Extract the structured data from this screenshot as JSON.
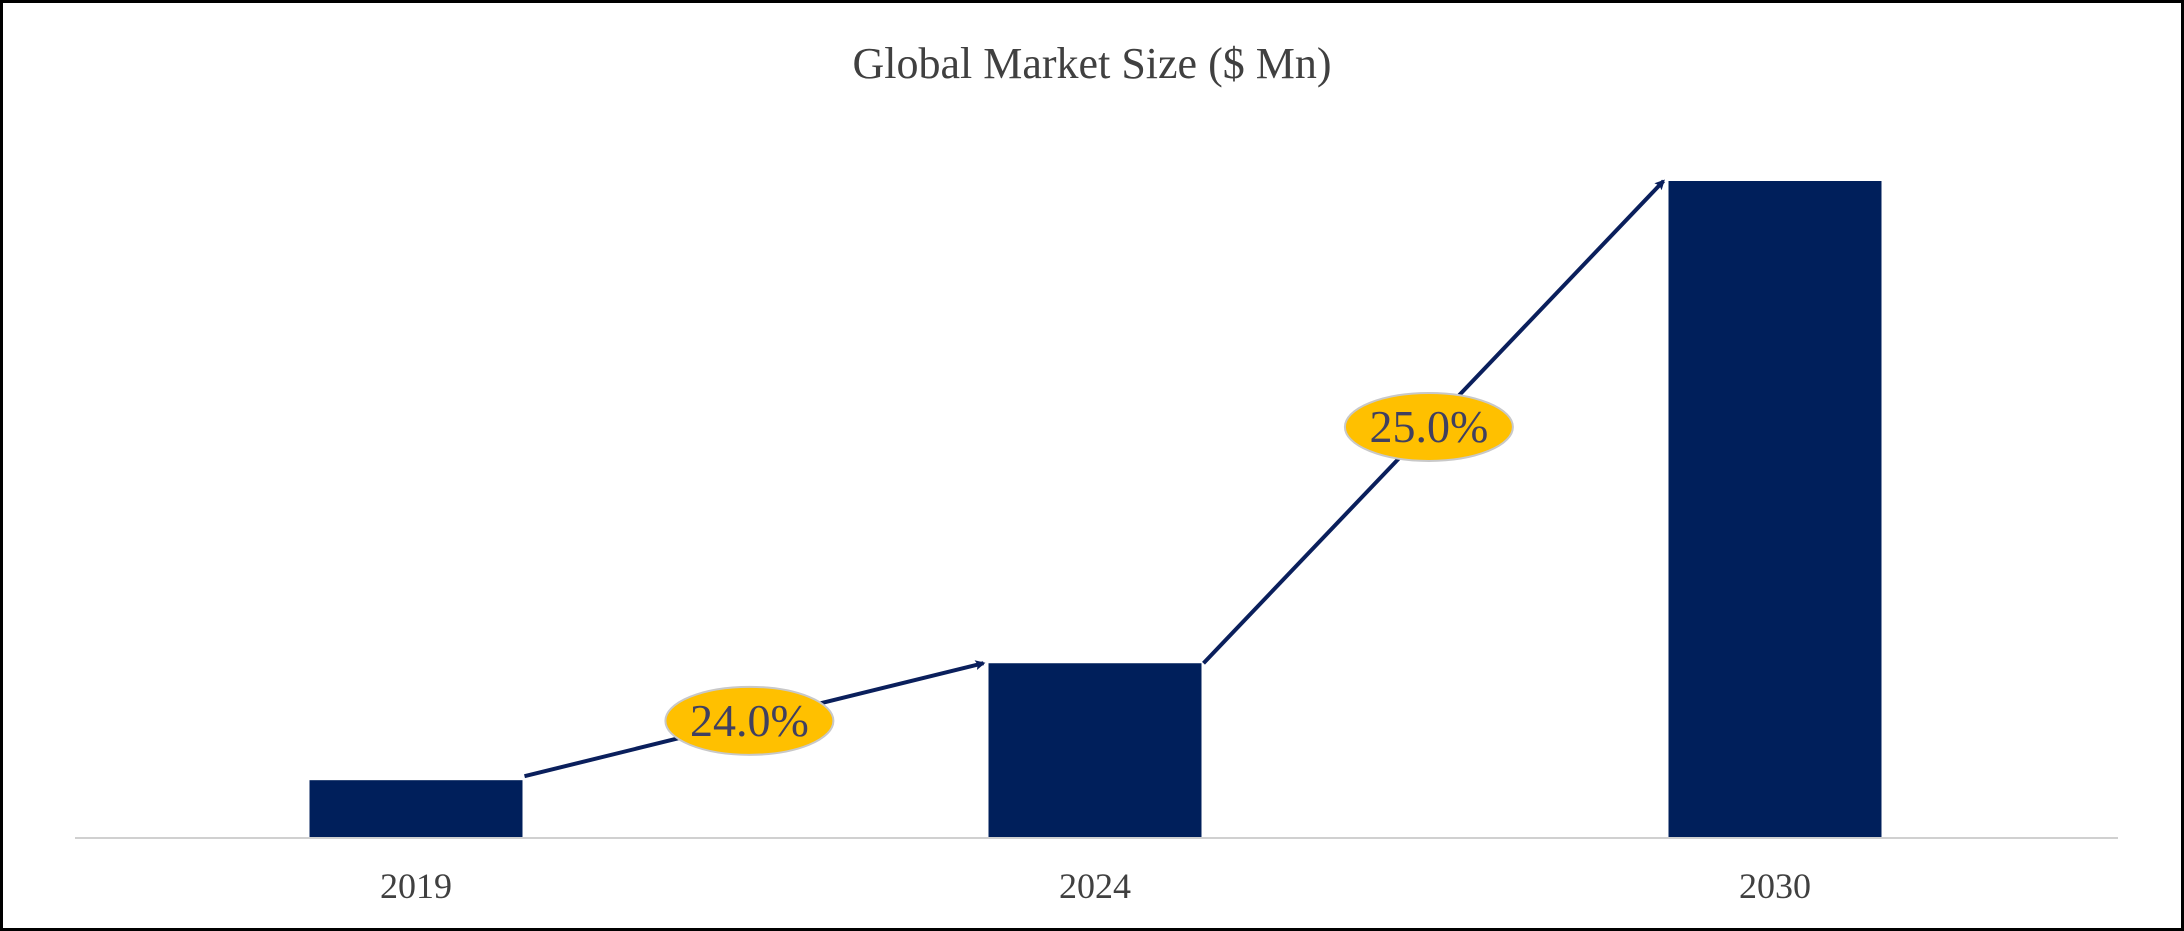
{
  "chart_data": {
    "type": "bar",
    "title": "Global Market Size ($ Mn)",
    "xlabel": "",
    "ylabel": "",
    "categories": [
      "2019",
      "2024",
      "2030"
    ],
    "values": [
      8.8,
      26.6,
      100
    ],
    "value_note": "relative bar heights (no value labels or y-axis shown)",
    "ylim": [
      0,
      100
    ],
    "grid": false,
    "legend": "none",
    "annotations": [
      {
        "label": "24.0%",
        "from": "2019",
        "to": "2024"
      },
      {
        "label": "25.0%",
        "from": "2024",
        "to": "2030"
      }
    ],
    "colors": {
      "bar": "#001F5B",
      "arrow": "#0A1F5C",
      "badge": "#FFC000",
      "badge_text": "#404060",
      "axis": "#D0D0D0",
      "text": "#404040"
    }
  }
}
